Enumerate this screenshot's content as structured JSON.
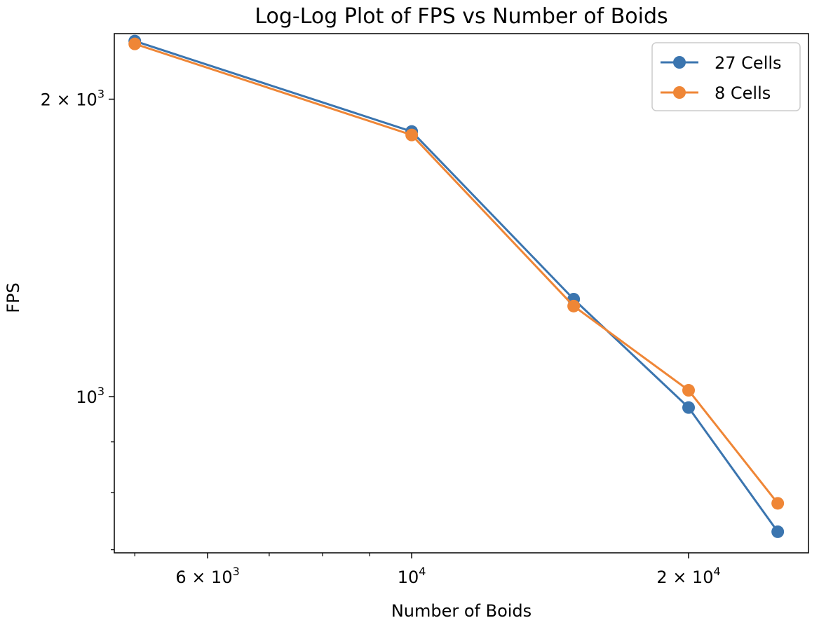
{
  "chart_data": {
    "type": "line",
    "title": "Log-Log Plot of FPS vs Number of Boids",
    "xlabel": "Number of Boids",
    "ylabel": "FPS",
    "xscale": "log",
    "yscale": "log",
    "xlim": [
      4750,
      27000
    ],
    "ylim": [
      695,
      2330
    ],
    "grid": false,
    "legend_position": "top-right",
    "x": [
      5000,
      10000,
      15000,
      20000,
      25000
    ],
    "series": [
      {
        "name": "27 Cells",
        "color": "#3b75af",
        "values": [
          2290,
          1855,
          1255,
          975,
          730
        ]
      },
      {
        "name": "8 Cells",
        "color": "#ef8636",
        "values": [
          2275,
          1840,
          1235,
          1015,
          780
        ]
      }
    ],
    "x_major_ticks": [
      {
        "value": 6000,
        "base": "6 × 10",
        "exp": "3"
      },
      {
        "value": 10000,
        "base": "10",
        "exp": "4"
      },
      {
        "value": 20000,
        "base": "2 × 10",
        "exp": "4"
      }
    ],
    "x_minor_ticks": [
      5000,
      7000,
      8000,
      9000
    ],
    "y_major_ticks": [
      {
        "value": 1000,
        "base": "10",
        "exp": "3"
      },
      {
        "value": 2000,
        "base": "2 × 10",
        "exp": "3"
      }
    ],
    "y_minor_ticks": [
      700,
      800,
      900
    ]
  }
}
